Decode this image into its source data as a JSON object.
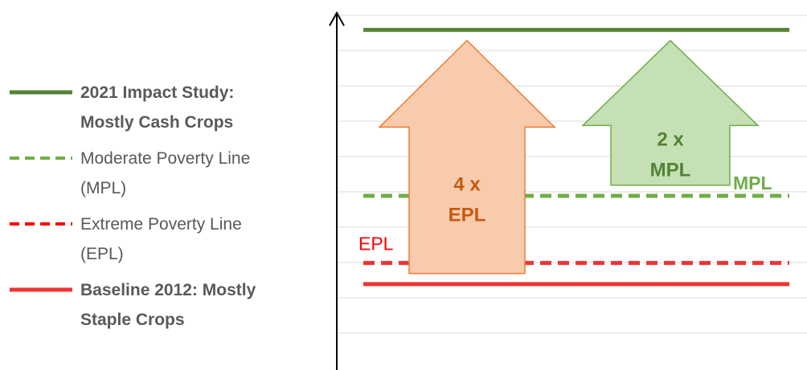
{
  "legend": [
    {
      "label": "2021 Impact Study:\nMostly Cash Crops",
      "color": "#548235",
      "style": "solid",
      "bold": true
    },
    {
      "label": "Moderate Poverty Line\n(MPL)",
      "color": "#70ad47",
      "style": "dashed",
      "bold": false
    },
    {
      "label": "Extreme Poverty Line\n(EPL)",
      "color": "#ff0000",
      "style": "dashed",
      "bold": false
    },
    {
      "label": "Baseline 2012: Mostly\nStaple Crops",
      "color": "#ee3333",
      "style": "solid",
      "bold": true
    }
  ],
  "chart_data": {
    "type": "line",
    "title": "",
    "xlabel": "",
    "ylabel": "",
    "grid": true,
    "legend_position": "left",
    "ylim": [
      0,
      9
    ],
    "series": [
      {
        "name": "2021 Impact Study: Mostly Cash Crops",
        "value": 8.7,
        "color": "#548235",
        "style": "solid"
      },
      {
        "name": "Moderate Poverty Line (MPL)",
        "value": 4.0,
        "color": "#70ad47",
        "style": "dashed"
      },
      {
        "name": "Extreme Poverty Line (EPL)",
        "value": 2.1,
        "color": "#ee3333",
        "style": "dashed"
      },
      {
        "name": "Baseline 2012: Mostly Staple Crops",
        "value": 1.5,
        "color": "#ee3333",
        "style": "solid"
      }
    ],
    "line_labels": [
      {
        "text": "MPL",
        "series": 1,
        "color": "#70ad47"
      },
      {
        "text": "EPL",
        "series": 2,
        "color": "#ff0000"
      }
    ],
    "arrows": [
      {
        "line1": "4 x",
        "line2": "EPL",
        "from": 1.8,
        "to": 8.4,
        "fill": "#f8cbad",
        "stroke": "#ed7d31",
        "text_color": "#c55a11"
      },
      {
        "line1": "2 x",
        "line2": "MPL",
        "from": 4.3,
        "to": 8.4,
        "fill": "#c5e0b4",
        "stroke": "#70ad47",
        "text_color": "#548235"
      }
    ]
  }
}
